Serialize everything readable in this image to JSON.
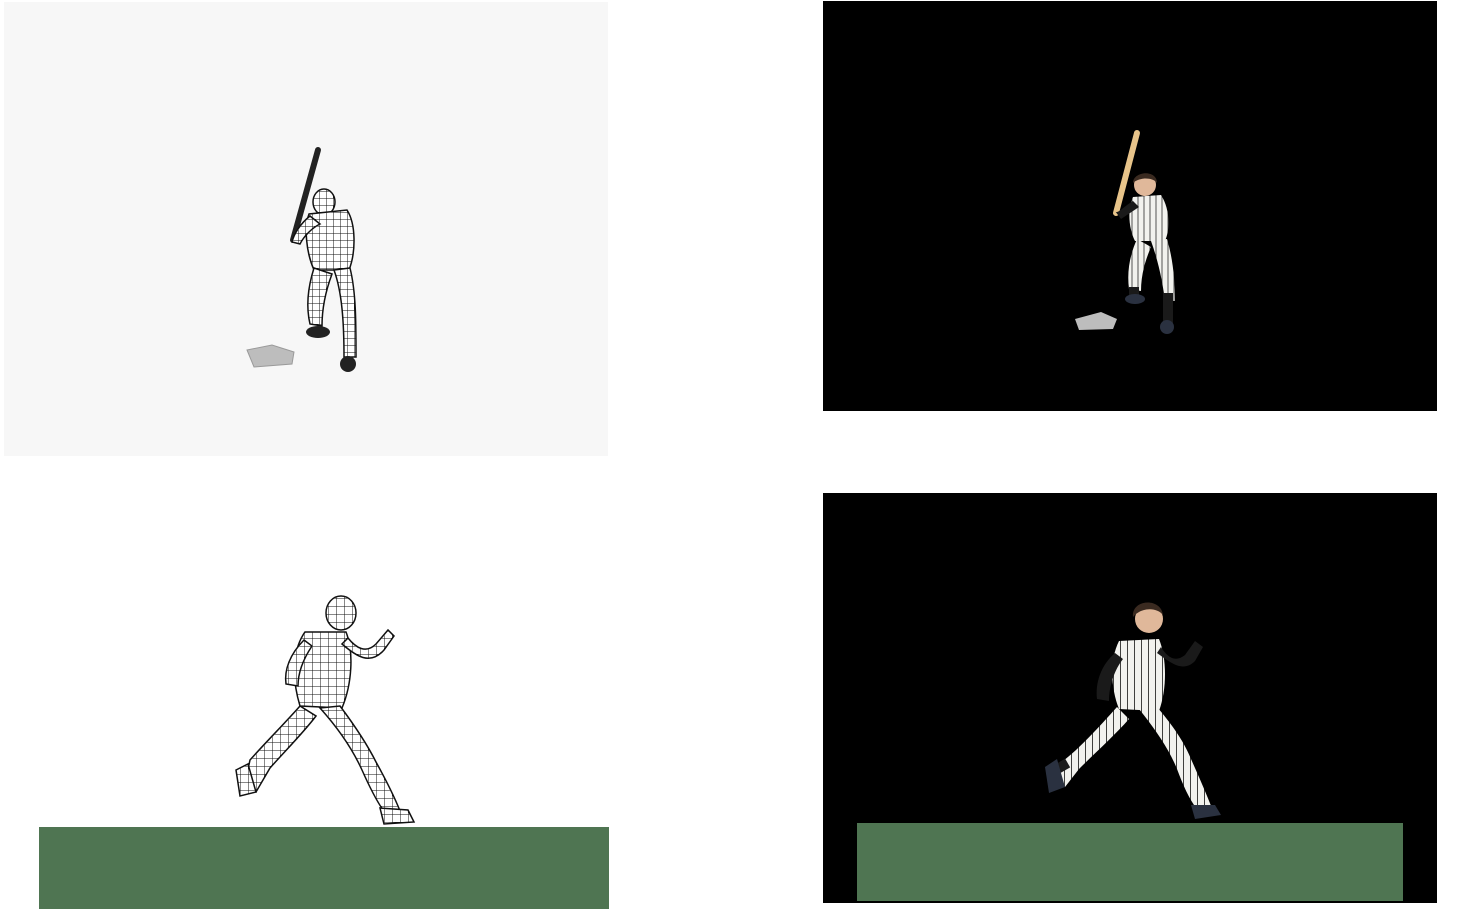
{
  "panels": [
    {
      "id": "wireframe-batter",
      "style": "wireframe",
      "subject": "batter",
      "background": "#f7f7f7"
    },
    {
      "id": "rendered-batter",
      "style": "rendered",
      "subject": "batter",
      "background": "#000000"
    },
    {
      "id": "wireframe-runner",
      "style": "wireframe",
      "subject": "runner",
      "background": "#ffffff"
    },
    {
      "id": "rendered-runner",
      "style": "rendered",
      "subject": "runner",
      "background": "#000000"
    }
  ],
  "colors": {
    "ground": "#4f7552",
    "plate": "#bdbdbd",
    "bat": "#e8c48a",
    "uniform": "#f2f2ee",
    "stripe": "#2b2b2b",
    "sleeve": "#1a1a1a",
    "hair": "#3a2a20",
    "skin": "#e0b89a"
  }
}
